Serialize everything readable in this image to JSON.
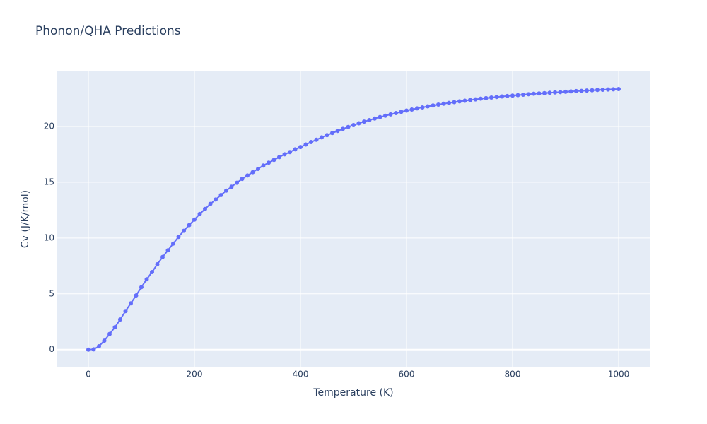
{
  "chart_data": {
    "type": "line",
    "title": "Phonon/QHA Predictions",
    "x_label": "Temperature (K)",
    "y_label": "Cv (J/K/mol)",
    "x": [
      0,
      10,
      20,
      30,
      40,
      50,
      60,
      70,
      80,
      90,
      100,
      110,
      120,
      130,
      140,
      150,
      160,
      170,
      180,
      190,
      200,
      210,
      220,
      230,
      240,
      250,
      260,
      270,
      280,
      290,
      300,
      310,
      320,
      330,
      340,
      350,
      360,
      370,
      380,
      390,
      400,
      410,
      420,
      430,
      440,
      450,
      460,
      470,
      480,
      490,
      500,
      510,
      520,
      530,
      540,
      550,
      560,
      570,
      580,
      590,
      600,
      610,
      620,
      630,
      640,
      650,
      660,
      670,
      680,
      690,
      700,
      710,
      720,
      730,
      740,
      750,
      760,
      770,
      780,
      790,
      800,
      810,
      820,
      830,
      840,
      850,
      860,
      870,
      880,
      890,
      900,
      910,
      920,
      930,
      940,
      950,
      960,
      970,
      980,
      990,
      1000
    ],
    "series": [
      {
        "color": "#636efa",
        "values": [
          0,
          0.02,
          0.3,
          0.8,
          1.4,
          2.0,
          2.7,
          3.45,
          4.15,
          4.85,
          5.6,
          6.3,
          6.95,
          7.65,
          8.3,
          8.9,
          9.5,
          10.1,
          10.65,
          11.15,
          11.65,
          12.15,
          12.6,
          13.05,
          13.45,
          13.85,
          14.25,
          14.6,
          14.95,
          15.3,
          15.6,
          15.9,
          16.2,
          16.5,
          16.75,
          17.0,
          17.25,
          17.5,
          17.7,
          17.95,
          18.15,
          18.38,
          18.6,
          18.81,
          19.02,
          19.22,
          19.41,
          19.6,
          19.78,
          19.95,
          20.12,
          20.28,
          20.43,
          20.57,
          20.71,
          20.84,
          20.96,
          21.08,
          21.2,
          21.31,
          21.42,
          21.52,
          21.62,
          21.71,
          21.8,
          21.88,
          21.96,
          22.04,
          22.11,
          22.18,
          22.25,
          22.31,
          22.37,
          22.43,
          22.49,
          22.54,
          22.59,
          22.64,
          22.69,
          22.73,
          22.77,
          22.81,
          22.85,
          22.89,
          22.93,
          22.96,
          22.99,
          23.02,
          23.05,
          23.08,
          23.11,
          23.14,
          23.17,
          23.19,
          23.22,
          23.24,
          23.27,
          23.29,
          23.31,
          23.33,
          23.35
        ]
      }
    ],
    "xlim": [
      -60,
      1060
    ],
    "ylim": [
      -1.6,
      25
    ],
    "xticks": [
      0,
      200,
      400,
      600,
      800,
      1000
    ],
    "yticks": [
      0,
      5,
      10,
      15,
      20
    ],
    "grid": true
  }
}
